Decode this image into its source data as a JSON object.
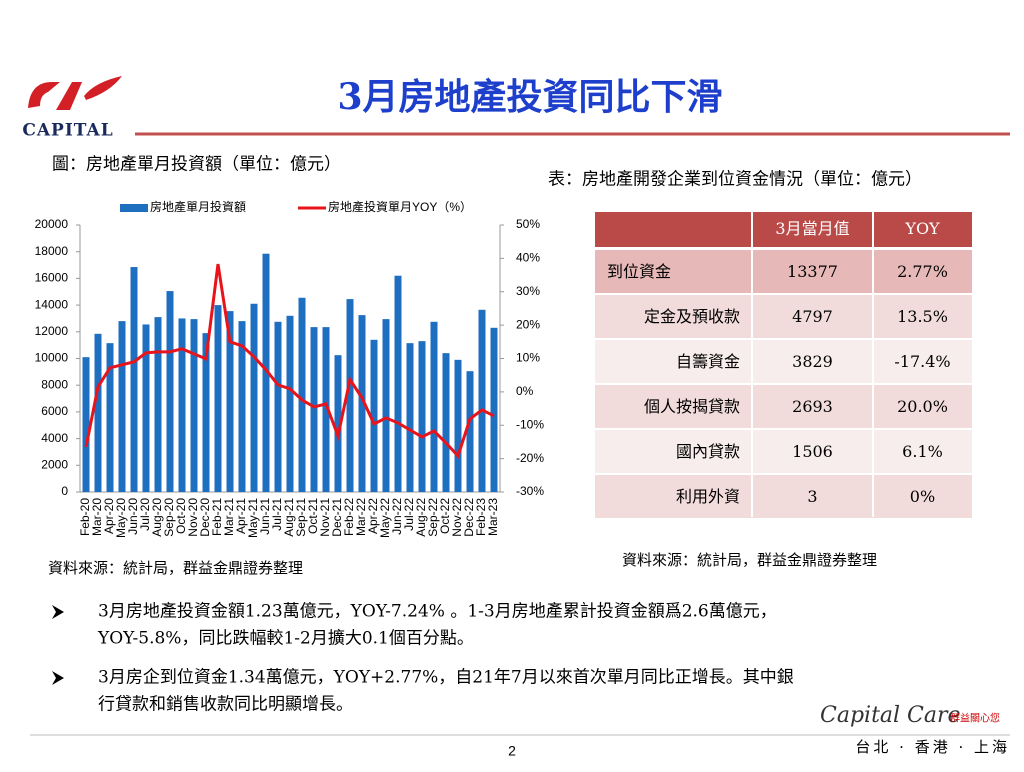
{
  "header": {
    "logo": "CAPITAL",
    "title": "3月房地產投資同比下滑"
  },
  "chart_caption": "圖：房地產單月投資額（單位：億元）",
  "chart_data": {
    "type": "bar",
    "categories": [
      "Feb-20",
      "Mar-20",
      "Apr-20",
      "May-20",
      "Jun-20",
      "Jul-20",
      "Aug-20",
      "Sep-20",
      "Oct-20",
      "Nov-20",
      "Dec-20",
      "Feb-21",
      "Mar-21",
      "Apr-21",
      "May-21",
      "Jun-21",
      "Jul-21",
      "Aug-21",
      "Sep-21",
      "Oct-21",
      "Nov-21",
      "Dec-21",
      "Feb-22",
      "Mar-22",
      "Apr-22",
      "May-22",
      "Jun-22",
      "Jul-22",
      "Aug-22",
      "Sep-22",
      "Oct-22",
      "Nov-22",
      "Dec-22",
      "Feb-23",
      "Mar-23"
    ],
    "series": [
      {
        "name": "房地產單月投資額",
        "color": "#1f6fc0",
        "type": "bar",
        "values": [
          10100,
          11850,
          11150,
          12800,
          16850,
          12550,
          13100,
          15050,
          13000,
          12950,
          11900,
          14000,
          13550,
          12800,
          14100,
          17850,
          12750,
          13200,
          14550,
          12350,
          12350,
          10250,
          14450,
          13250,
          11400,
          12950,
          16200,
          11150,
          11300,
          12750,
          10400,
          9900,
          9050,
          13650,
          12300
        ]
      },
      {
        "name": "房地產投資單月YOY（%）",
        "color": "#e8141c",
        "type": "line",
        "axis": "y2",
        "values": [
          -16.5,
          1.5,
          7.2,
          8.1,
          9,
          11.7,
          12,
          12,
          12.9,
          11.4,
          9.9,
          38.3,
          15,
          13.8,
          10.5,
          6.6,
          2.1,
          0.9,
          -2.4,
          -4.5,
          -3.6,
          -13.2,
          3.7,
          -1.8,
          -9.6,
          -7.8,
          -9.3,
          -11.4,
          -13.5,
          -11.7,
          -15.3,
          -19.2,
          -8.1,
          -5.4,
          -7.2
        ]
      }
    ],
    "ylim": [
      0,
      20000
    ],
    "yticks": [
      0,
      2000,
      4000,
      6000,
      8000,
      10000,
      12000,
      14000,
      16000,
      18000,
      20000
    ],
    "y2lim": [
      -30,
      50
    ],
    "y2ticks": [
      {
        "value": -30,
        "label": "-30%"
      },
      {
        "value": -20,
        "label": "-20%"
      },
      {
        "value": -10,
        "label": "-10%"
      },
      {
        "value": 0,
        "label": "0%"
      },
      {
        "value": 10,
        "label": "10%"
      },
      {
        "value": 20,
        "label": "20%"
      },
      {
        "value": 30,
        "label": "30%"
      },
      {
        "value": 40,
        "label": "40%"
      },
      {
        "value": 50,
        "label": "50%"
      }
    ],
    "legend": "top"
  },
  "chart_source": "資料來源：統計局，群益金鼎證券整理",
  "table_caption": "表：房地產開發企業到位資金情況（單位：億元）",
  "table": {
    "columns": [
      "3月當月值",
      "YOY"
    ],
    "rows": [
      [
        "到位資金",
        "13377",
        "2.77%"
      ],
      [
        "定金及預收款",
        "4797",
        "13.5%"
      ],
      [
        "自籌資金",
        "3829",
        "-17.4%"
      ],
      [
        "個人按揭貸款",
        "2693",
        "20.0%"
      ],
      [
        "國內貸款",
        "1506",
        "6.1%"
      ],
      [
        "利用外資",
        "3",
        "0%"
      ]
    ]
  },
  "table_source": "資料來源：統計局，群益金鼎證券整理",
  "bullets": [
    [
      "3月房地產投資金額1.23萬億元，YOY-7.24% 。1-3月房地產累計投資金額爲2.6萬億元，",
      "YOY-5.8%，同比跌幅較1-2月擴大0.1個百分點。"
    ],
    [
      "3月房企到位資金1.34萬億元，YOY+2.77%，自21年7月以來首次單月同比正增長。其中銀",
      "行貸款和銷售收款同比明顯增長。"
    ]
  ],
  "footer": {
    "brand": "Capital Care",
    "slogan": "群益關心您",
    "page": "2",
    "cities": "台北 · 香港 · 上海"
  }
}
